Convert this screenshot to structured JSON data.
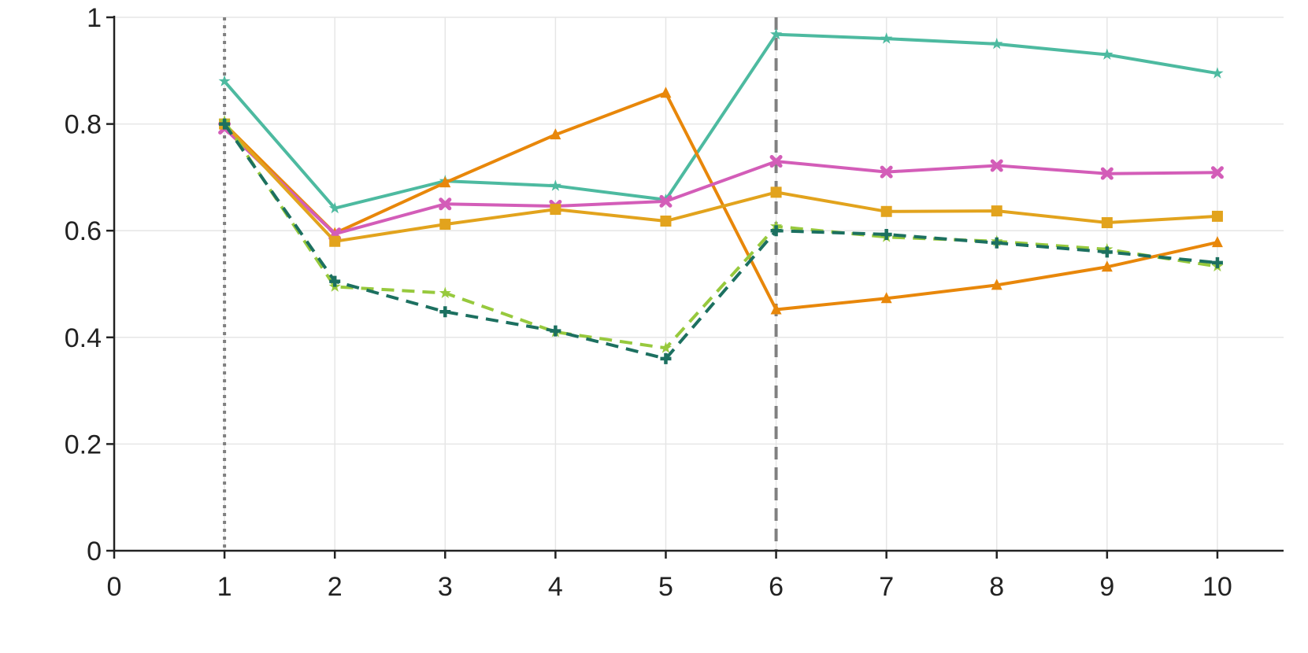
{
  "chart_data": {
    "type": "line",
    "title": "",
    "xlabel": "",
    "ylabel": "",
    "xlim": [
      0,
      10.6
    ],
    "ylim": [
      0,
      1
    ],
    "x_ticks": [
      0,
      1,
      2,
      3,
      4,
      5,
      6,
      7,
      8,
      9,
      10
    ],
    "y_ticks": [
      0,
      0.2,
      0.4,
      0.6,
      0.8,
      1
    ],
    "x_tick_labels": [
      "0",
      "1",
      "2",
      "3",
      "4",
      "5",
      "6",
      "7",
      "8",
      "9",
      "10"
    ],
    "y_tick_labels": [
      "0",
      "0.2",
      "0.4",
      "0.6",
      "0.8",
      "1"
    ],
    "grid": true,
    "reference_lines": [
      {
        "x": 1,
        "style": "dotted",
        "color": "#808080"
      },
      {
        "x": 6,
        "style": "dashed",
        "color": "#808080"
      }
    ],
    "x": [
      1,
      2,
      3,
      4,
      5,
      6,
      7,
      8,
      9,
      10
    ],
    "series": [
      {
        "color": "#4dbaa0",
        "dash": "solid",
        "marker": "star",
        "values": [
          0.88,
          0.642,
          0.693,
          0.684,
          0.658,
          0.968,
          0.96,
          0.95,
          0.93,
          0.895
        ]
      },
      {
        "color": "#e8870a",
        "dash": "solid",
        "marker": "triangle",
        "values": [
          0.8,
          0.595,
          0.69,
          0.78,
          0.858,
          0.452,
          0.473,
          0.498,
          0.532,
          0.578
        ]
      },
      {
        "color": "#d35db8",
        "dash": "solid",
        "marker": "x",
        "values": [
          0.792,
          0.594,
          0.65,
          0.646,
          0.655,
          0.73,
          0.71,
          0.722,
          0.707,
          0.709
        ]
      },
      {
        "color": "#e2a31d",
        "dash": "solid",
        "marker": "square",
        "values": [
          0.8,
          0.58,
          0.612,
          0.64,
          0.618,
          0.672,
          0.636,
          0.637,
          0.615,
          0.627
        ]
      },
      {
        "color": "#97c93d",
        "dash": "dashed",
        "marker": "star",
        "values": [
          0.805,
          0.495,
          0.483,
          0.41,
          0.38,
          0.608,
          0.588,
          0.58,
          0.565,
          0.533
        ]
      },
      {
        "color": "#1c7060",
        "dash": "dashed",
        "marker": "plus",
        "values": [
          0.8,
          0.505,
          0.448,
          0.412,
          0.36,
          0.6,
          0.593,
          0.577,
          0.56,
          0.54
        ]
      }
    ]
  }
}
